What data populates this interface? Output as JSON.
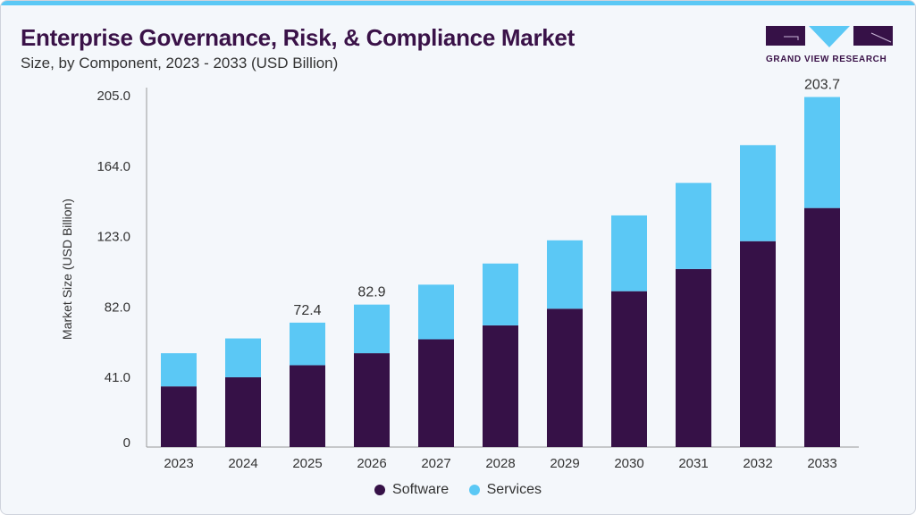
{
  "title": "Enterprise Governance, Risk, & Compliance Market",
  "subtitle": "Size, by Component, 2023 - 2033 (USD Billion)",
  "logo": {
    "text": "GRAND VIEW RESEARCH"
  },
  "chart_data": {
    "type": "bar",
    "stacked": true,
    "categories": [
      "2023",
      "2024",
      "2025",
      "2026",
      "2027",
      "2028",
      "2029",
      "2030",
      "2031",
      "2032",
      "2033"
    ],
    "series": [
      {
        "name": "Software",
        "color": "#361147",
        "values": [
          35.3,
          40.6,
          47.6,
          54.6,
          62.7,
          70.8,
          80.5,
          90.7,
          103.6,
          119.8,
          139.1
        ]
      },
      {
        "name": "Services",
        "color": "#5bc8f5",
        "values": [
          19.3,
          22.6,
          24.8,
          28.3,
          31.8,
          36.0,
          39.8,
          44.1,
          50.1,
          55.9,
          64.6
        ]
      }
    ],
    "data_labels": {
      "2025": "72.4",
      "2026": "82.9",
      "2033": "203.7"
    },
    "ylabel": "Market Size (USD Billion)",
    "xlabel": "",
    "ylim": [
      0,
      205
    ],
    "yticks": [
      "0",
      "41.0",
      "82.0",
      "123.0",
      "164.0",
      "205.0"
    ],
    "grid": false,
    "legend": "bottom"
  }
}
